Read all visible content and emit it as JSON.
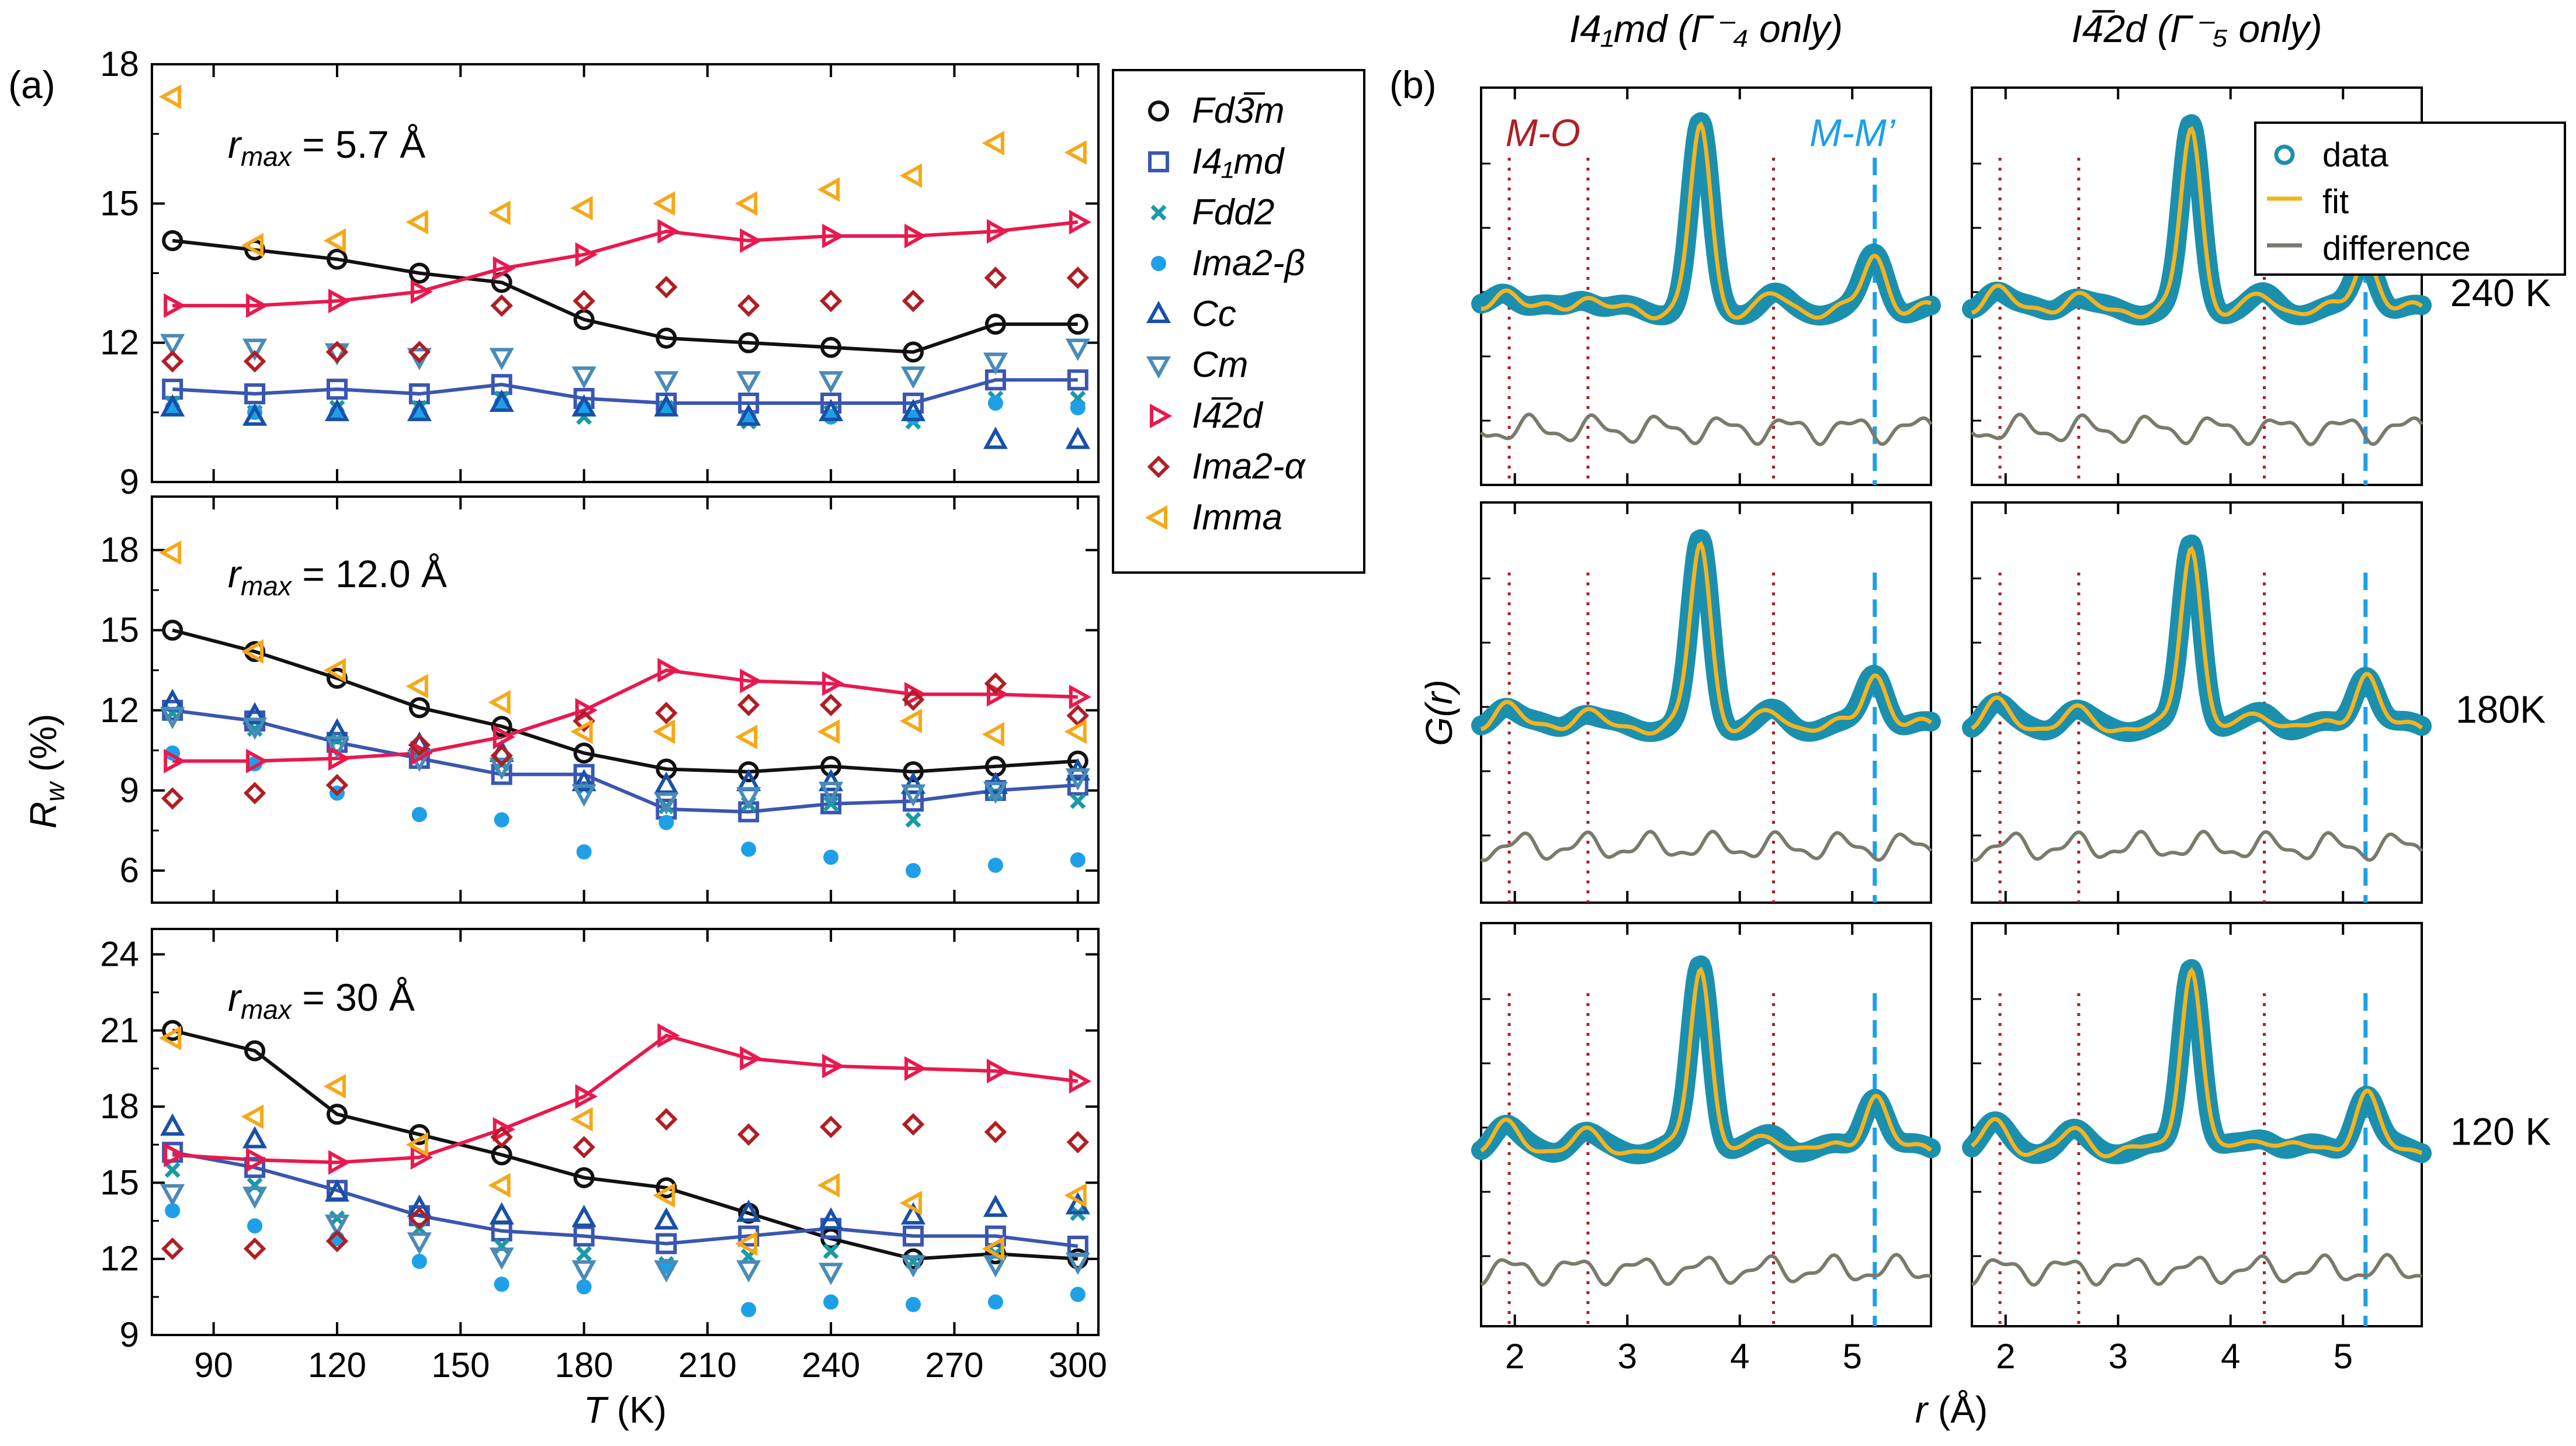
{
  "panel_labels": {
    "a": "(a)",
    "b": "(b)"
  },
  "legend_a": [
    {
      "key": "fd3m",
      "label": "Fd3̅m",
      "marker": "circle",
      "color": "#111111"
    },
    {
      "key": "i41md",
      "label": "I4₁md",
      "marker": "square",
      "color": "#3a56b0"
    },
    {
      "key": "fdd2",
      "label": "Fdd2",
      "marker": "x",
      "color": "#1a9aa4"
    },
    {
      "key": "ima2b",
      "label": "Ima2-β",
      "marker": "dot",
      "color": "#1ea0e8"
    },
    {
      "key": "cc",
      "label": "Cc",
      "marker": "triangle-up",
      "color": "#1850a8"
    },
    {
      "key": "cm",
      "label": "Cm",
      "marker": "triangle-down",
      "color": "#4a8ab8"
    },
    {
      "key": "i42d",
      "label": "I4̅2d",
      "marker": "triangle-right",
      "color": "#e8194e"
    },
    {
      "key": "ima2a",
      "label": "Ima2-α",
      "marker": "diamond",
      "color": "#b01e24"
    },
    {
      "key": "imma",
      "label": "Imma",
      "marker": "triangle-left",
      "color": "#f5a819"
    }
  ],
  "chart_data": [
    {
      "type": "scatter",
      "panel": "(a) top",
      "annotation": "r_max = 5.7 Å",
      "xlabel": "T (K)",
      "ylabel": "R_w (%)",
      "xlim": [
        75,
        305
      ],
      "ylim": [
        9,
        18
      ],
      "yticks": [
        9,
        12,
        15,
        18
      ],
      "x": [
        80,
        100,
        120,
        140,
        160,
        180,
        200,
        220,
        240,
        260,
        280,
        300
      ],
      "series": [
        {
          "name": "Fd3̅m",
          "line": true,
          "values": [
            14.2,
            14.0,
            13.8,
            13.5,
            13.3,
            12.5,
            12.1,
            12.0,
            11.9,
            11.8,
            12.4,
            12.4
          ]
        },
        {
          "name": "I4₁md",
          "line": true,
          "values": [
            11.0,
            10.9,
            11.0,
            10.9,
            11.1,
            10.8,
            10.7,
            10.7,
            10.7,
            10.7,
            11.2,
            11.2
          ]
        },
        {
          "name": "Fdd2",
          "line": false,
          "values": [
            10.7,
            10.5,
            10.6,
            10.6,
            10.8,
            10.4,
            10.6,
            10.3,
            10.5,
            10.3,
            10.8,
            10.8
          ]
        },
        {
          "name": "Ima2-β",
          "line": false,
          "values": [
            10.6,
            10.5,
            10.5,
            10.5,
            10.7,
            10.6,
            10.6,
            10.4,
            10.4,
            10.4,
            10.7,
            10.6
          ]
        },
        {
          "name": "Cc",
          "line": false,
          "values": [
            10.6,
            10.4,
            10.5,
            10.5,
            10.7,
            10.6,
            10.6,
            10.4,
            10.5,
            10.5,
            9.9,
            9.9
          ]
        },
        {
          "name": "Cm",
          "line": false,
          "values": [
            12.0,
            11.9,
            11.8,
            11.7,
            11.7,
            11.3,
            11.2,
            11.2,
            11.2,
            11.3,
            11.6,
            11.9
          ]
        },
        {
          "name": "I4̅2d",
          "line": true,
          "values": [
            12.8,
            12.8,
            12.9,
            13.1,
            13.6,
            13.9,
            14.4,
            14.2,
            14.3,
            14.3,
            14.4,
            14.6
          ]
        },
        {
          "name": "Ima2-α",
          "line": false,
          "values": [
            11.6,
            11.6,
            11.8,
            11.8,
            12.8,
            12.9,
            13.2,
            12.8,
            12.9,
            12.9,
            13.4,
            13.4
          ]
        },
        {
          "name": "Imma",
          "line": false,
          "values": [
            17.3,
            14.1,
            14.2,
            14.6,
            14.8,
            14.9,
            15.0,
            15.0,
            15.3,
            15.6,
            16.3,
            16.1
          ]
        }
      ]
    },
    {
      "type": "scatter",
      "panel": "(a) middle",
      "annotation": "r_max = 12.0 Å",
      "xlabel": "T (K)",
      "ylabel": "R_w (%)",
      "xlim": [
        75,
        305
      ],
      "ylim": [
        4.8,
        20
      ],
      "yticks": [
        6,
        9,
        12,
        15,
        18
      ],
      "x": [
        80,
        100,
        120,
        140,
        160,
        180,
        200,
        220,
        240,
        260,
        280,
        300
      ],
      "series": [
        {
          "name": "Fd3̅m",
          "line": true,
          "values": [
            15.0,
            14.2,
            13.2,
            12.1,
            11.4,
            10.4,
            9.8,
            9.7,
            9.9,
            9.7,
            9.9,
            10.1
          ]
        },
        {
          "name": "I4₁md",
          "line": true,
          "values": [
            12.0,
            11.6,
            10.8,
            10.2,
            9.6,
            9.6,
            8.3,
            8.2,
            8.5,
            8.6,
            9.0,
            9.2
          ]
        },
        {
          "name": "Fdd2",
          "line": false,
          "values": [
            11.9,
            11.3,
            10.9,
            10.4,
            10.0,
            9.1,
            8.4,
            8.5,
            8.5,
            7.9,
            8.9,
            8.6
          ]
        },
        {
          "name": "Ima2-β",
          "line": false,
          "values": [
            10.4,
            10.0,
            8.9,
            8.1,
            7.9,
            6.7,
            7.8,
            6.8,
            6.5,
            6.0,
            6.2,
            6.4
          ]
        },
        {
          "name": "Cc",
          "line": false,
          "values": [
            12.3,
            11.8,
            11.2,
            10.7,
            10.4,
            9.3,
            9.2,
            9.3,
            9.3,
            9.2,
            9.2,
            9.7
          ]
        },
        {
          "name": "Cm",
          "line": false,
          "values": [
            11.8,
            11.4,
            10.7,
            10.2,
            9.9,
            8.9,
            8.6,
            8.8,
            9.0,
            8.9,
            9.0,
            9.5
          ]
        },
        {
          "name": "I4̅2d",
          "line": true,
          "values": [
            10.1,
            10.1,
            10.2,
            10.4,
            11.0,
            12.0,
            13.5,
            13.1,
            13.0,
            12.6,
            12.6,
            12.5
          ]
        },
        {
          "name": "Ima2-α",
          "line": false,
          "values": [
            8.7,
            8.9,
            9.2,
            10.7,
            10.3,
            11.6,
            11.9,
            12.2,
            12.2,
            12.4,
            13.0,
            11.8
          ]
        },
        {
          "name": "Imma",
          "line": false,
          "values": [
            17.9,
            14.2,
            13.5,
            12.9,
            12.3,
            11.2,
            11.2,
            11.0,
            11.2,
            11.6,
            11.1,
            11.2
          ]
        }
      ]
    },
    {
      "type": "scatter",
      "panel": "(a) bottom",
      "annotation": "r_max = 30 Å",
      "xlabel": "T (K)",
      "ylabel": "R_w (%)",
      "xlim": [
        75,
        305
      ],
      "ylim": [
        9,
        25
      ],
      "yticks": [
        9,
        12,
        15,
        18,
        21,
        24
      ],
      "xticks": [
        90,
        120,
        150,
        180,
        210,
        240,
        270,
        300
      ],
      "x": [
        80,
        100,
        120,
        140,
        160,
        180,
        200,
        220,
        240,
        260,
        280,
        300
      ],
      "series": [
        {
          "name": "Fd3̅m",
          "line": true,
          "values": [
            21.0,
            20.2,
            17.7,
            16.9,
            16.1,
            15.2,
            14.8,
            13.8,
            12.8,
            12.0,
            12.2,
            12.0
          ]
        },
        {
          "name": "I4₁md",
          "line": true,
          "values": [
            16.2,
            15.6,
            14.7,
            13.7,
            13.1,
            12.9,
            12.6,
            12.9,
            13.2,
            12.9,
            12.9,
            12.5
          ]
        },
        {
          "name": "Fdd2",
          "line": false,
          "values": [
            15.5,
            14.9,
            13.6,
            13.2,
            12.5,
            12.2,
            11.8,
            12.1,
            12.3,
            11.9,
            12.2,
            13.8
          ]
        },
        {
          "name": "Ima2-β",
          "line": false,
          "values": [
            13.9,
            13.3,
            12.8,
            11.9,
            11.0,
            10.9,
            11.7,
            10.0,
            10.3,
            10.2,
            10.3,
            10.6
          ]
        },
        {
          "name": "Cc",
          "line": false,
          "values": [
            17.2,
            16.7,
            14.6,
            14.0,
            13.7,
            13.6,
            13.5,
            13.8,
            13.5,
            13.7,
            14.0,
            14.1
          ]
        },
        {
          "name": "Cm",
          "line": false,
          "values": [
            14.6,
            14.5,
            13.4,
            12.7,
            12.1,
            11.6,
            11.6,
            11.6,
            11.5,
            11.8,
            11.8,
            11.9
          ]
        },
        {
          "name": "I4̅2d",
          "line": true,
          "values": [
            16.1,
            15.9,
            15.8,
            16.0,
            17.1,
            18.4,
            20.8,
            19.9,
            19.6,
            19.5,
            19.4,
            19.0
          ]
        },
        {
          "name": "Ima2-α",
          "line": false,
          "values": [
            12.4,
            12.4,
            12.7,
            13.6,
            16.8,
            16.4,
            17.5,
            16.9,
            17.2,
            17.3,
            17.0,
            16.6
          ]
        },
        {
          "name": "Imma",
          "line": false,
          "values": [
            20.7,
            17.6,
            18.8,
            16.5,
            14.9,
            17.5,
            14.5,
            12.6,
            14.9,
            14.2,
            12.4,
            14.5
          ]
        }
      ]
    },
    {
      "type": "line",
      "panel": "(b) PDF fits",
      "titles": [
        "I4₁md (Γ⁻₄ only)",
        "I4̅2d  (Γ⁻₅ only)"
      ],
      "row_labels": [
        "240 K",
        "180K",
        "120 K"
      ],
      "xlabel": "r (Å)",
      "ylabel": "G(r)",
      "xlim": [
        1.7,
        5.7
      ],
      "xticks": [
        2,
        3,
        4,
        5
      ],
      "legend": [
        "data",
        "fit",
        "difference"
      ],
      "annotations": [
        "M-O",
        "M-M’"
      ],
      "reference_lines": {
        "dotted_red": [
          1.95,
          2.65,
          4.3
        ],
        "dashed_blue": [
          5.2
        ]
      },
      "peaks": [
        {
          "r": 1.9,
          "height": 0.12
        },
        {
          "r": 2.6,
          "height": 0.08
        },
        {
          "r": 3.65,
          "height": 1.0
        },
        {
          "r": 4.3,
          "height": 0.07
        },
        {
          "r": 5.2,
          "height": 0.3
        }
      ]
    }
  ],
  "styles": {
    "data_color": "#1b90ae",
    "fit_color": "#f5b31e",
    "diff_color": "#7a7a6c",
    "mo_color": "#b01e24",
    "mm_color": "#1ea0e8"
  }
}
